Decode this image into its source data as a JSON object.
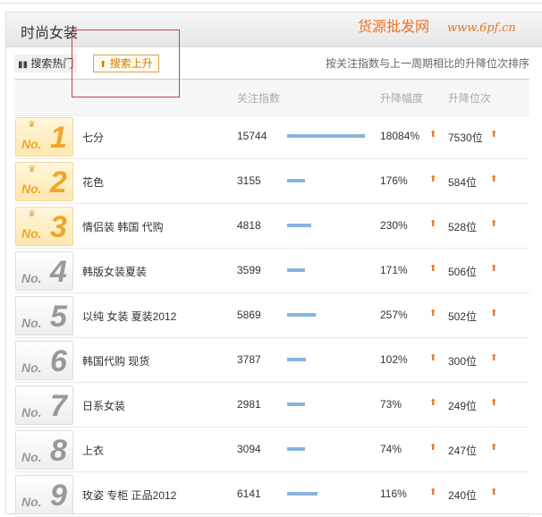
{
  "title": "时尚女装",
  "tabs": [
    {
      "label": "搜索热门",
      "icon": "bar-chart-icon"
    },
    {
      "label": "搜索上升",
      "icon": "up-arrow-icon",
      "active": true
    }
  ],
  "sort_note": "按关注指数与上一周期相比的升降位次排序",
  "columns": {
    "index": "关注指数",
    "change_pct": "升降幅度",
    "rank_change": "升降位次"
  },
  "colors": {
    "bar": "#87b4dc",
    "up_arrow": "#e8792a",
    "active_tab": "#d07a00"
  },
  "rows": [
    {
      "rank": "1",
      "no": "No.",
      "name": "七分",
      "index": "15744",
      "pct": "18084%",
      "rank_change": "7530位"
    },
    {
      "rank": "2",
      "no": "No.",
      "name": "花色",
      "index": "3155",
      "pct": "176%",
      "rank_change": "584位"
    },
    {
      "rank": "3",
      "no": "No.",
      "name": "情侣装 韩国 代购",
      "index": "4818",
      "pct": "230%",
      "rank_change": "528位"
    },
    {
      "rank": "4",
      "no": "No.",
      "name": "韩版女装夏装",
      "index": "3599",
      "pct": "171%",
      "rank_change": "506位"
    },
    {
      "rank": "5",
      "no": "No.",
      "name": "以纯 女装 夏装2012",
      "index": "5869",
      "pct": "257%",
      "rank_change": "502位"
    },
    {
      "rank": "6",
      "no": "No.",
      "name": "韩国代购 现货",
      "index": "3787",
      "pct": "102%",
      "rank_change": "300位"
    },
    {
      "rank": "7",
      "no": "No.",
      "name": "日系女装",
      "index": "2981",
      "pct": "73%",
      "rank_change": "249位"
    },
    {
      "rank": "8",
      "no": "No.",
      "name": "上衣",
      "index": "3094",
      "pct": "74%",
      "rank_change": "247位"
    },
    {
      "rank": "9",
      "no": "No.",
      "name": "玫姿 专柜 正品2012",
      "index": "6141",
      "pct": "116%",
      "rank_change": "240位"
    }
  ],
  "watermark": {
    "line1": "货源批发网",
    "line2": "www.6pf.cn"
  }
}
